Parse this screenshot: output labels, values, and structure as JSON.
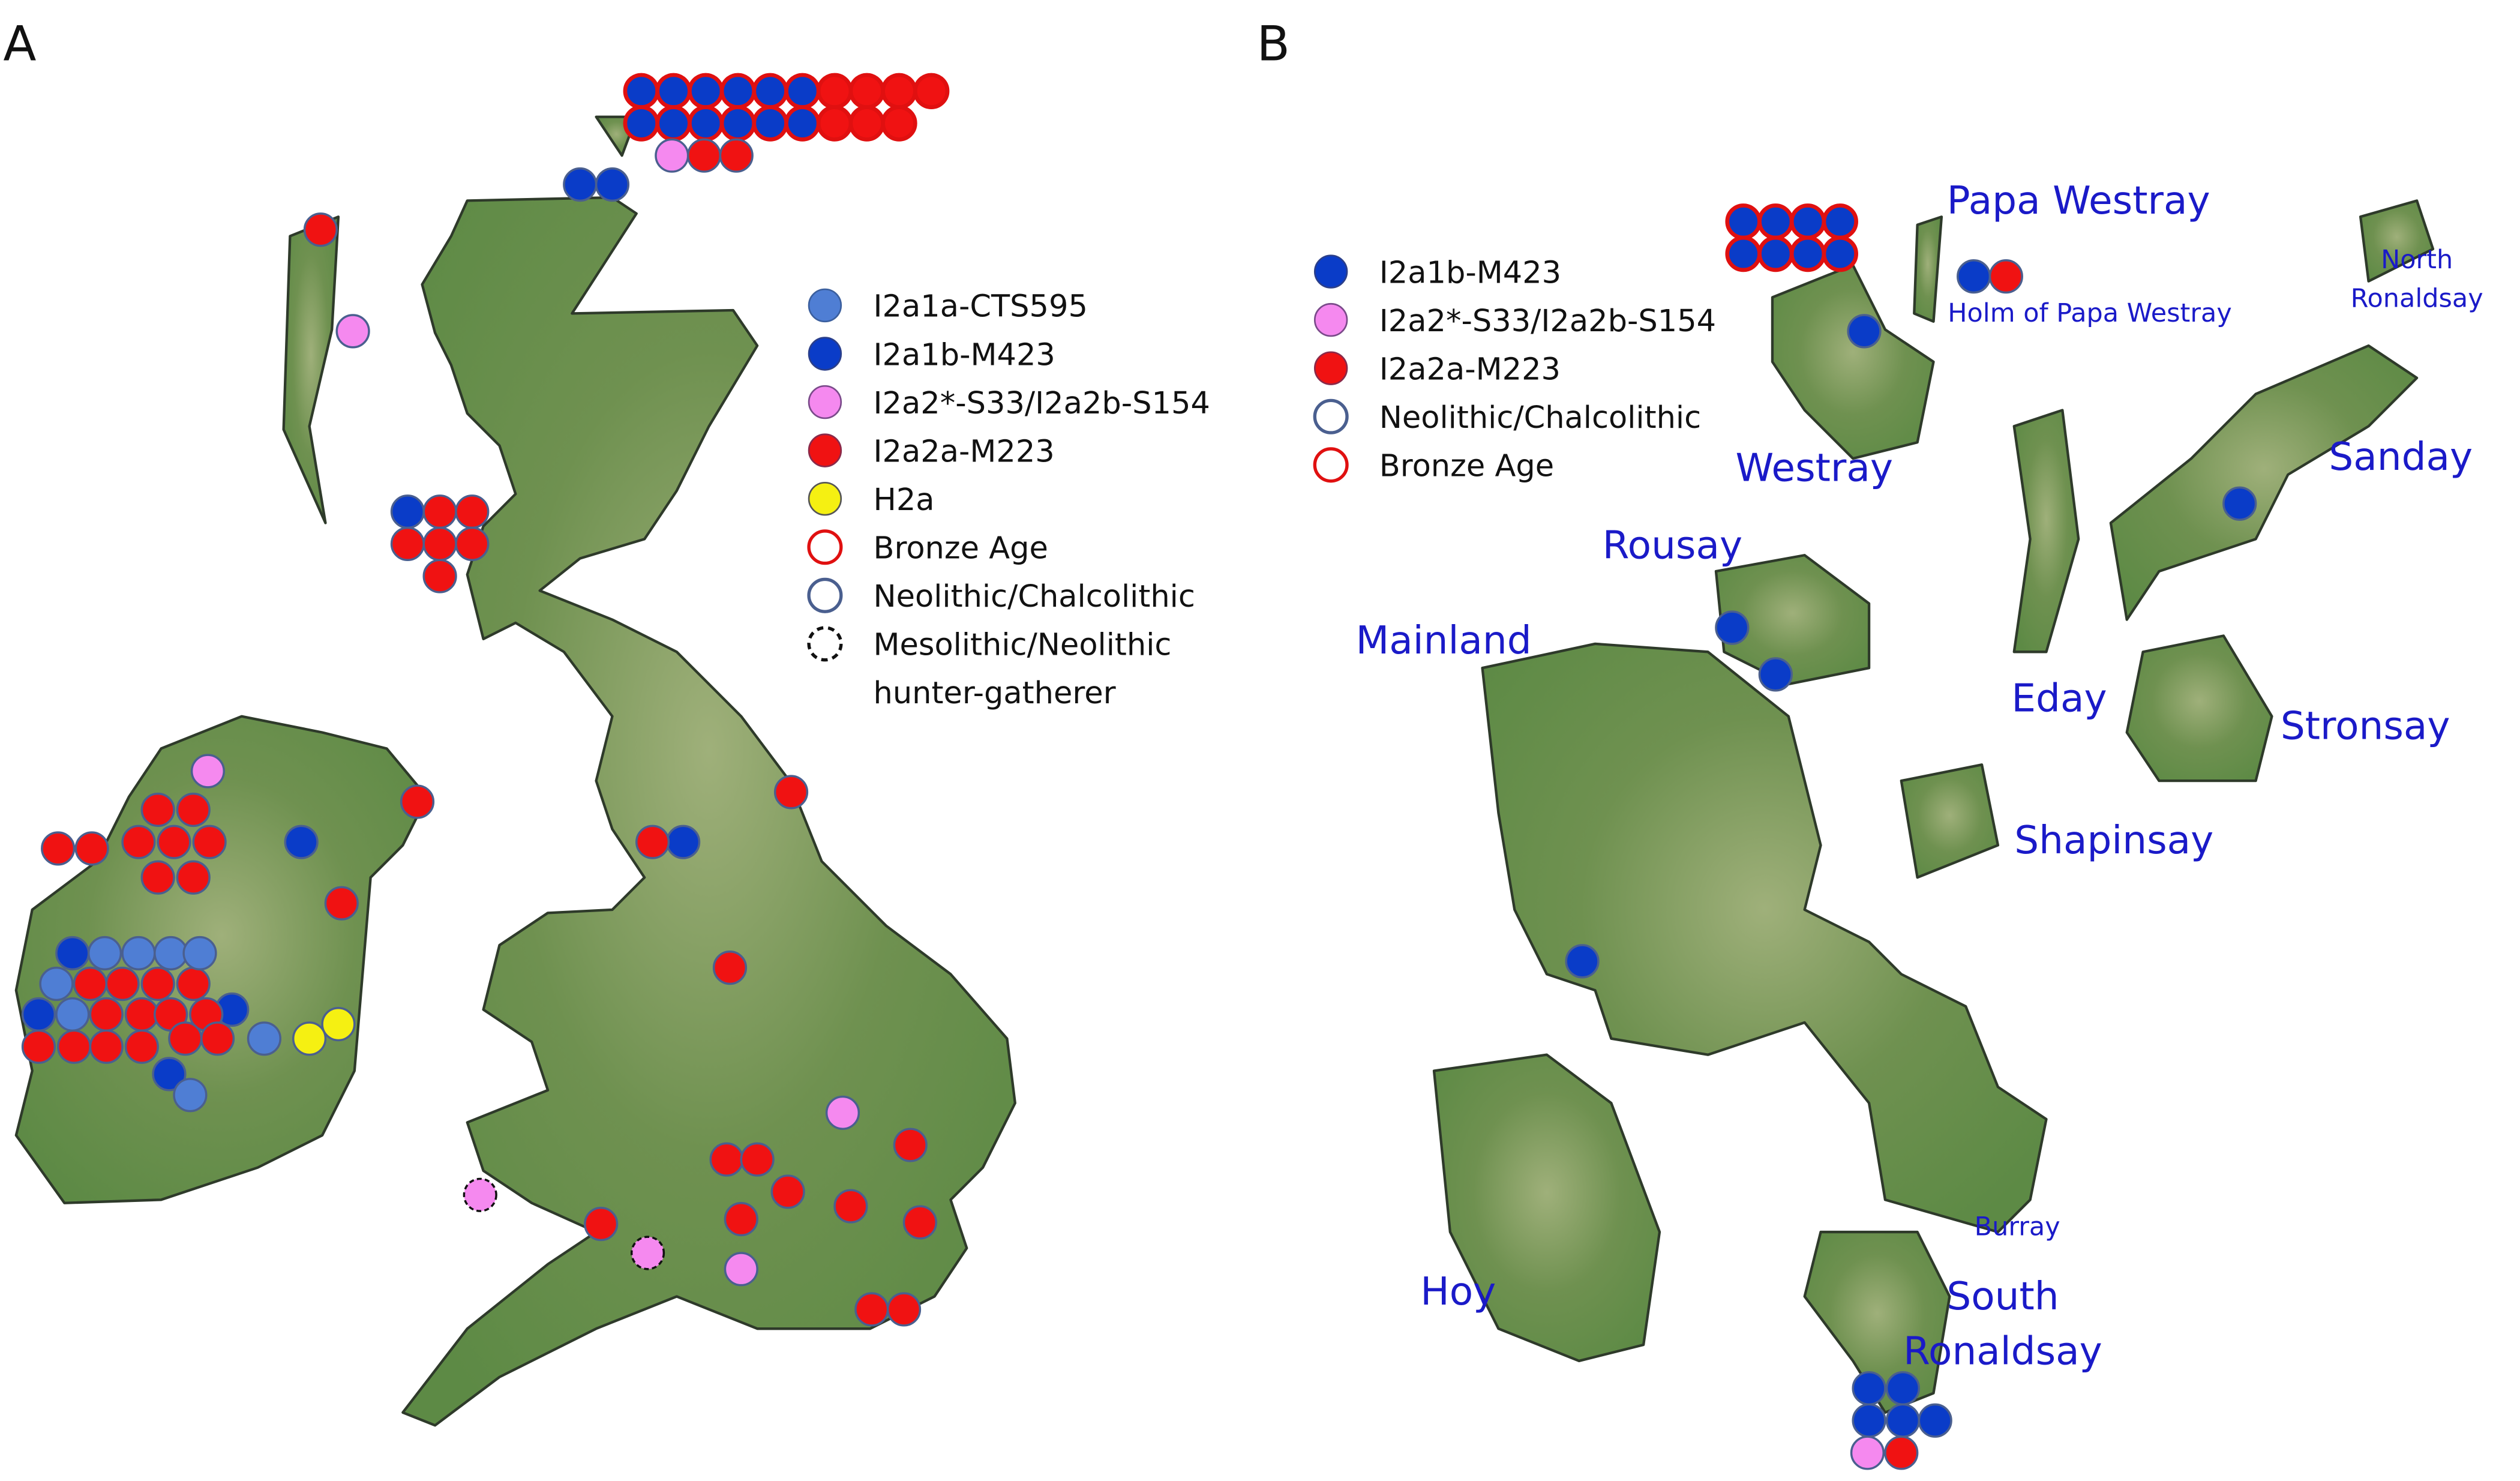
{
  "panels": [
    {
      "label": "A",
      "legend": [
        {
          "lines": [
            "I2a1a-CTS595"
          ],
          "fill": "#4f7ed4",
          "stroke": "#3b5f9e"
        },
        {
          "lines": [
            "I2a1b-M423"
          ],
          "fill": "#0a3cc8",
          "stroke": "#2b3f8a"
        },
        {
          "lines": [
            "I2a2*-S33/I2a2b-S154"
          ],
          "fill": "#f589ef",
          "stroke": "#7a4a8a"
        },
        {
          "lines": [
            "I2a2a-M223"
          ],
          "fill": "#f01212",
          "stroke": "#8a2a4a"
        },
        {
          "lines": [
            "H2a"
          ],
          "fill": "#f5f012",
          "stroke": "#555555"
        },
        {
          "lines": [
            "Bronze Age"
          ],
          "fill": "none",
          "stroke": "#e01010"
        },
        {
          "lines": [
            "Neolithic/Chalcolithic"
          ],
          "fill": "none",
          "stroke": "#4a5f8f"
        },
        {
          "lines": [
            "Mesolithic/Neolithic",
            "hunter-gatherer"
          ],
          "fill": "none",
          "stroke": "#111111",
          "dashed": true
        }
      ]
    },
    {
      "label": "B",
      "legend": [
        {
          "lines": [
            "I2a1b-M423"
          ],
          "fill": "#0a3cc8",
          "stroke": "#2b3f8a"
        },
        {
          "lines": [
            "I2a2*-S33/I2a2b-S154"
          ],
          "fill": "#f589ef",
          "stroke": "#7a4a8a"
        },
        {
          "lines": [
            "I2a2a-M223"
          ],
          "fill": "#f01212",
          "stroke": "#8a2a4a"
        },
        {
          "lines": [
            "Neolithic/Chalcolithic"
          ],
          "fill": "none",
          "stroke": "#4a5f8f"
        },
        {
          "lines": [
            "Bronze Age"
          ],
          "fill": "none",
          "stroke": "#e01010"
        }
      ],
      "places": [
        {
          "lines": [
            "Papa Westray"
          ]
        },
        {
          "lines": [
            "Holm of Papa Westray"
          ]
        },
        {
          "lines": [
            "North",
            "Ronaldsay"
          ]
        },
        {
          "lines": [
            "Westray"
          ]
        },
        {
          "lines": [
            "Sanday"
          ]
        },
        {
          "lines": [
            "Rousay"
          ]
        },
        {
          "lines": [
            "Mainland"
          ]
        },
        {
          "lines": [
            "Eday"
          ]
        },
        {
          "lines": [
            "Stronsay"
          ]
        },
        {
          "lines": [
            "Shapinsay"
          ]
        },
        {
          "lines": [
            "Burray"
          ]
        },
        {
          "lines": [
            "Hoy"
          ]
        },
        {
          "lines": [
            "South",
            "Ronaldsay"
          ]
        }
      ]
    }
  ]
}
